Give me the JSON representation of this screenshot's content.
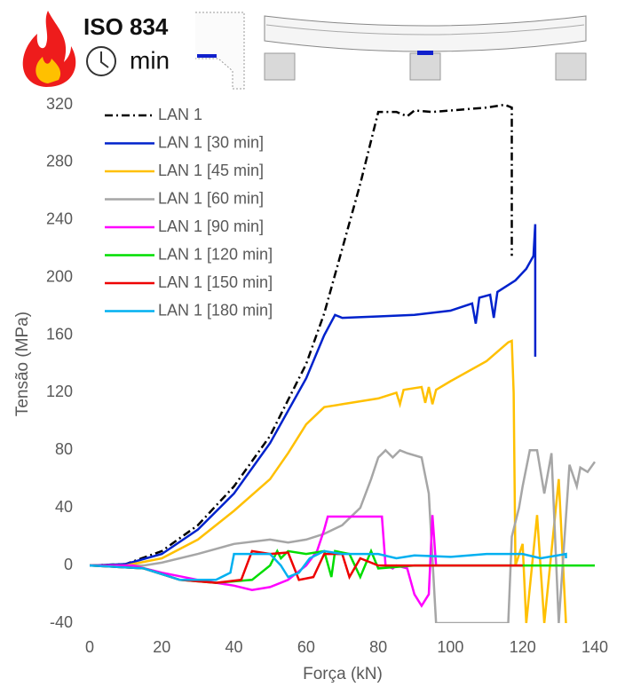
{
  "chart_data": {
    "type": "line",
    "annotations": [
      "ISO 834",
      "min"
    ],
    "xlabel": "Força (kN)",
    "ylabel": "Tensão (MPa)",
    "xlim": [
      0,
      140
    ],
    "xticks": [
      0,
      20,
      40,
      60,
      80,
      100,
      120,
      140
    ],
    "ylim": [
      -40,
      320
    ],
    "yticks": [
      -40,
      0,
      40,
      80,
      120,
      160,
      200,
      240,
      280,
      320
    ],
    "legend": "upper left",
    "series": [
      {
        "name": "LAN 1",
        "color": "#000000",
        "dash": "dashdot",
        "x": [
          0,
          10,
          20,
          30,
          40,
          50,
          60,
          65,
          70,
          75,
          80,
          85,
          88,
          90,
          95,
          100,
          110,
          115,
          117,
          117
        ],
        "values": [
          0,
          1,
          10,
          28,
          55,
          90,
          140,
          175,
          220,
          265,
          315,
          315,
          312,
          316,
          315,
          316,
          318,
          320,
          318,
          215
        ]
      },
      {
        "name": "LAN 1 [30 min]",
        "color": "#0022cc",
        "dash": "solid",
        "x": [
          0,
          10,
          20,
          30,
          40,
          50,
          60,
          65,
          68,
          70,
          80,
          90,
          100,
          106,
          107,
          108,
          111,
          112,
          113,
          118,
          121,
          123,
          123.5,
          123.5
        ],
        "values": [
          0,
          1,
          8,
          25,
          50,
          85,
          130,
          160,
          174,
          172,
          173,
          174,
          177,
          182,
          168,
          186,
          188,
          172,
          190,
          198,
          206,
          215,
          237,
          145
        ]
      },
      {
        "name": "LAN 1 [45 min]",
        "color": "#ffc000",
        "dash": "solid",
        "x": [
          0,
          10,
          20,
          30,
          40,
          50,
          55,
          60,
          65,
          70,
          80,
          85,
          86,
          87,
          92,
          93,
          94,
          95,
          96,
          100,
          110,
          116,
          117,
          117.5,
          118,
          120,
          121,
          124,
          126,
          130,
          132
        ],
        "values": [
          0,
          0,
          5,
          18,
          38,
          60,
          78,
          98,
          110,
          112,
          116,
          120,
          112,
          122,
          124,
          113,
          124,
          112,
          122,
          128,
          142,
          155,
          156,
          120,
          0,
          15,
          -40,
          35,
          -40,
          60,
          -40
        ]
      },
      {
        "name": "LAN 1 [60 min]",
        "color": "#a6a6a6",
        "dash": "solid",
        "x": [
          0,
          15,
          20,
          30,
          40,
          50,
          55,
          60,
          65,
          70,
          75,
          78,
          80,
          82,
          84,
          86,
          88,
          92,
          94,
          96,
          116,
          117,
          119,
          120,
          122,
          124,
          126,
          128,
          130,
          133,
          135,
          136,
          138,
          140
        ],
        "values": [
          0,
          0,
          2,
          8,
          15,
          18,
          16,
          18,
          22,
          28,
          40,
          60,
          75,
          80,
          75,
          80,
          78,
          75,
          50,
          -40,
          -40,
          20,
          40,
          55,
          80,
          80,
          50,
          78,
          -40,
          70,
          55,
          68,
          65,
          72
        ]
      },
      {
        "name": "LAN 1 [90 min]",
        "color": "#ff00ff",
        "dash": "solid",
        "x": [
          0,
          12,
          20,
          30,
          40,
          45,
          50,
          55,
          60,
          63,
          65,
          66,
          70,
          80,
          81,
          82,
          84,
          85,
          88,
          90,
          92,
          94,
          95,
          96,
          97
        ],
        "values": [
          0,
          0,
          -5,
          -10,
          -14,
          -17,
          -15,
          -10,
          0,
          10,
          25,
          34,
          34,
          34,
          34,
          0,
          -2,
          0,
          -2,
          -20,
          -28,
          -20,
          35,
          0,
          0
        ]
      },
      {
        "name": "LAN 1 [120 min]",
        "color": "#00dd00",
        "dash": "solid",
        "x": [
          0,
          15,
          25,
          35,
          45,
          50,
          52,
          53,
          55,
          60,
          65,
          67,
          68,
          72,
          75,
          78,
          80,
          90,
          100,
          140
        ],
        "values": [
          0,
          -2,
          -10,
          -12,
          -10,
          0,
          10,
          5,
          10,
          8,
          10,
          -8,
          10,
          8,
          -8,
          10,
          -2,
          0,
          0,
          0
        ]
      },
      {
        "name": "LAN 1 [150 min]",
        "color": "#ee0000",
        "dash": "solid",
        "x": [
          0,
          15,
          25,
          35,
          42,
          45,
          50,
          55,
          58,
          62,
          65,
          70,
          72,
          75,
          80,
          100,
          120
        ],
        "values": [
          0,
          -2,
          -10,
          -12,
          -10,
          10,
          8,
          9,
          -10,
          -8,
          8,
          8,
          -8,
          5,
          0,
          0,
          0
        ]
      },
      {
        "name": "LAN 1 [180 min]",
        "color": "#00b0f0",
        "dash": "solid",
        "x": [
          0,
          15,
          25,
          35,
          39,
          40,
          50,
          53,
          55,
          58,
          61,
          65,
          70,
          80,
          85,
          90,
          100,
          110,
          120,
          125,
          132,
          132
        ],
        "values": [
          0,
          -2,
          -10,
          -10,
          -5,
          8,
          8,
          0,
          -8,
          -5,
          5,
          10,
          8,
          8,
          5,
          7,
          6,
          8,
          8,
          5,
          8,
          5
        ]
      }
    ]
  }
}
